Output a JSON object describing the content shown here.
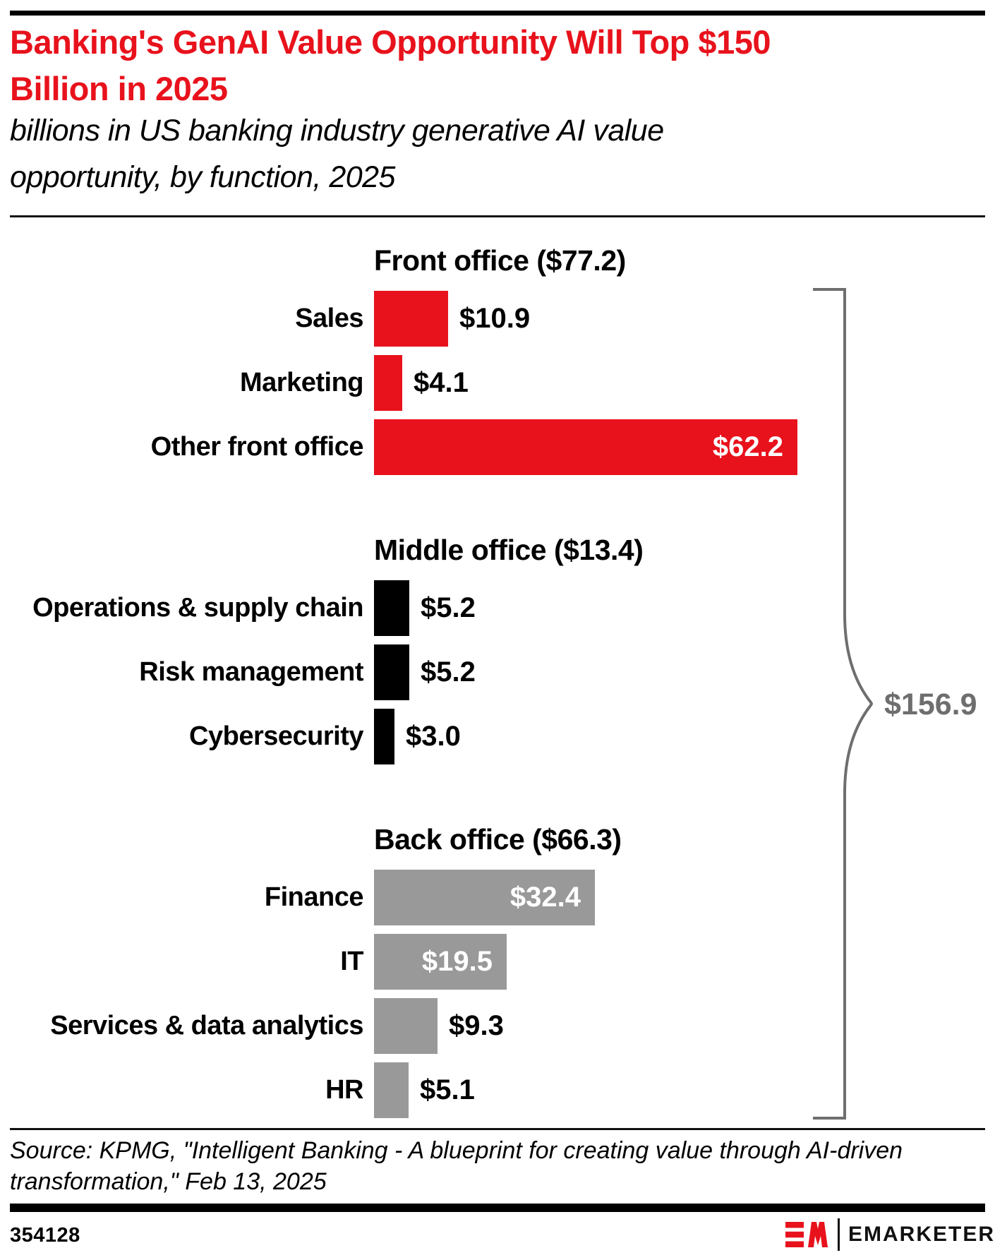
{
  "header": {
    "title_line1": "Banking's GenAI Value Opportunity Will Top $150",
    "title_line2": "Billion in 2025",
    "subtitle_line1": "billions in US banking industry generative AI value",
    "subtitle_line2": "opportunity, by function, 2025"
  },
  "colors": {
    "brand_red": "#e8121c",
    "middle_office_black": "#000000",
    "back_office_gray": "#999999",
    "brace_gray": "#6e6e6e",
    "inside_value_white": "#ffffff"
  },
  "chart_data": {
    "type": "bar",
    "orientation": "horizontal",
    "units": "billions of US dollars",
    "title": "billions in US banking industry generative AI value opportunity, by function, 2025",
    "total_label": "$156.9",
    "total_value": 156.9,
    "groups": [
      {
        "label": "Front office ($77.2)",
        "subtotal": 77.2,
        "color": "#e8121c",
        "bars": [
          {
            "label": "Sales",
            "value": 10.9,
            "display": "$10.9",
            "value_inside": false
          },
          {
            "label": "Marketing",
            "value": 4.1,
            "display": "$4.1",
            "value_inside": false
          },
          {
            "label": "Other front office",
            "value": 62.2,
            "display": "$62.2",
            "value_inside": true
          }
        ]
      },
      {
        "label": "Middle office ($13.4)",
        "subtotal": 13.4,
        "color": "#000000",
        "bars": [
          {
            "label": "Operations & supply chain",
            "value": 5.2,
            "display": "$5.2",
            "value_inside": false
          },
          {
            "label": "Risk management",
            "value": 5.2,
            "display": "$5.2",
            "value_inside": false
          },
          {
            "label": "Cybersecurity",
            "value": 3.0,
            "display": "$3.0",
            "value_inside": false
          }
        ]
      },
      {
        "label": "Back office ($66.3)",
        "subtotal": 66.3,
        "color": "#999999",
        "bars": [
          {
            "label": "Finance",
            "value": 32.4,
            "display": "$32.4",
            "value_inside": true
          },
          {
            "label": "IT",
            "value": 19.5,
            "display": "$19.5",
            "value_inside": true
          },
          {
            "label": "Services & data analytics",
            "value": 9.3,
            "display": "$9.3",
            "value_inside": false
          },
          {
            "label": "HR",
            "value": 5.1,
            "display": "$5.1",
            "value_inside": false
          }
        ]
      }
    ]
  },
  "footer": {
    "source_line1": "Source: KPMG, \"Intelligent Banking - A blueprint for creating value through AI-driven",
    "source_line2": "transformation,\" Feb 13, 2025",
    "chart_number": "354128",
    "brand": "EMARKETER"
  }
}
